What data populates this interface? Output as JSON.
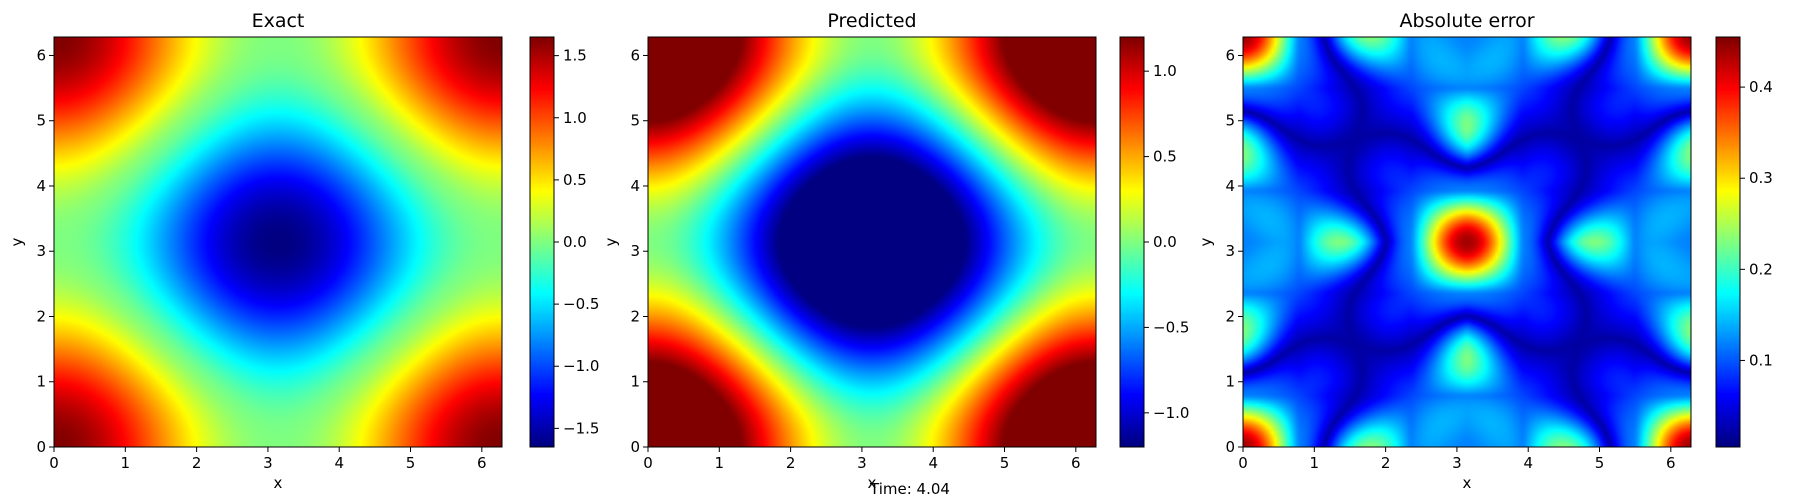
{
  "figure": {
    "caption": "Time: 4.04"
  },
  "chart_data": [
    {
      "type": "heatmap",
      "title": "Exact",
      "xlabel": "x",
      "ylabel": "y",
      "xlim": [
        0,
        6.283
      ],
      "ylim": [
        0,
        6.283
      ],
      "xticks": [
        "0",
        "1",
        "2",
        "3",
        "4",
        "5",
        "6"
      ],
      "yticks": [
        "0",
        "1",
        "2",
        "3",
        "4",
        "5",
        "6"
      ],
      "field": "exact",
      "colorbar": {
        "min": -1.65,
        "max": 1.65,
        "ticks": [
          -1.5,
          -1.0,
          -0.5,
          0.0,
          0.5,
          1.0,
          1.5
        ],
        "tick_labels": [
          "−1.5",
          "−1.0",
          "−0.5",
          "0.0",
          "0.5",
          "1.0",
          "1.5"
        ],
        "colormap": "jet"
      }
    },
    {
      "type": "heatmap",
      "title": "Predicted",
      "xlabel": "x",
      "ylabel": "y",
      "xlim": [
        0,
        6.283
      ],
      "ylim": [
        0,
        6.283
      ],
      "xticks": [
        "0",
        "1",
        "2",
        "3",
        "4",
        "5",
        "6"
      ],
      "yticks": [
        "0",
        "1",
        "2",
        "3",
        "4",
        "5",
        "6"
      ],
      "field": "predicted",
      "colorbar": {
        "min": -1.2,
        "max": 1.2,
        "ticks": [
          -1.0,
          -0.5,
          0.0,
          0.5,
          1.0
        ],
        "tick_labels": [
          "−1.0",
          "−0.5",
          "0.0",
          "0.5",
          "1.0"
        ],
        "colormap": "jet"
      }
    },
    {
      "type": "heatmap",
      "title": "Absolute error",
      "xlabel": "x",
      "ylabel": "y",
      "xlim": [
        0,
        6.283
      ],
      "ylim": [
        0,
        6.283
      ],
      "xticks": [
        "0",
        "1",
        "2",
        "3",
        "4",
        "5",
        "6"
      ],
      "yticks": [
        "0",
        "1",
        "2",
        "3",
        "4",
        "5",
        "6"
      ],
      "field": "abs_error",
      "colorbar": {
        "min": 0.005,
        "max": 0.455,
        "ticks": [
          0.1,
          0.2,
          0.3,
          0.4
        ],
        "tick_labels": [
          "0.1",
          "0.2",
          "0.3",
          "0.4"
        ],
        "colormap": "jet"
      }
    }
  ]
}
